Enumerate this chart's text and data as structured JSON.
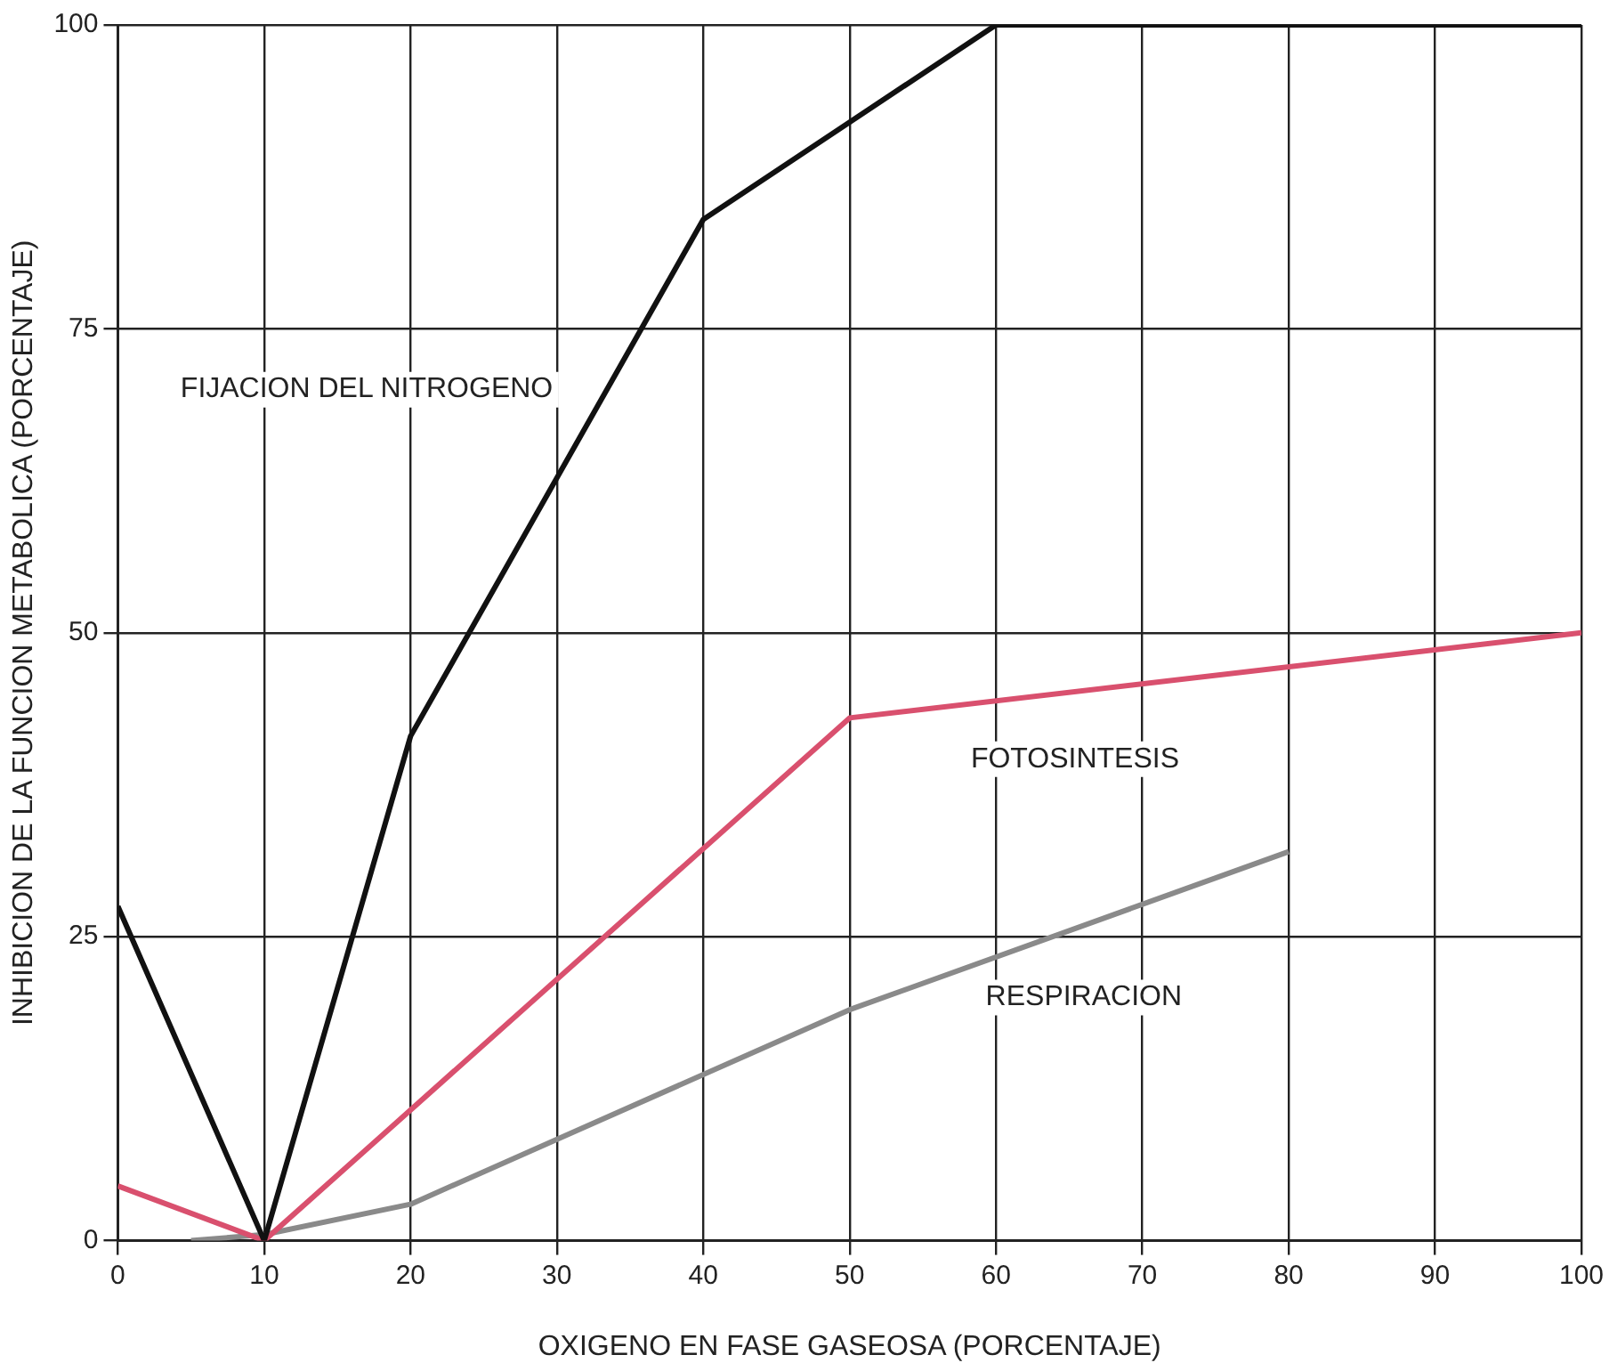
{
  "chart_data": {
    "type": "line",
    "xlabel": "OXIGENO EN FASE GASEOSA (PORCENTAJE)",
    "ylabel": "INHIBICION DE LA FUNCION METABOLICA (PORCENTAJE)",
    "series": [
      {
        "name": "FIJACION DEL NITROGENO",
        "color": "#111111",
        "x": [
          0,
          10,
          20,
          40,
          50,
          60,
          100
        ],
        "values": [
          27.5,
          0,
          41.5,
          84,
          92,
          100,
          100
        ]
      },
      {
        "name": "FOTOSINTESIS",
        "color": "#d9506e",
        "x": [
          0,
          10,
          50,
          100
        ],
        "values": [
          4.5,
          0,
          43,
          50
        ]
      },
      {
        "name": "RESPIRACION",
        "color": "#8a8a8a",
        "x": [
          5,
          10,
          20,
          50,
          80
        ],
        "values": [
          0,
          0.5,
          3,
          19,
          32
        ]
      }
    ],
    "xlim": [
      0,
      100
    ],
    "xticks": [
      0,
      10,
      20,
      30,
      40,
      50,
      60,
      70,
      80,
      90,
      100
    ],
    "ylim": [
      0,
      100
    ],
    "yticks": [
      0,
      25,
      50,
      75,
      100
    ],
    "grid": true,
    "marker": "none",
    "line_style": "solid"
  }
}
